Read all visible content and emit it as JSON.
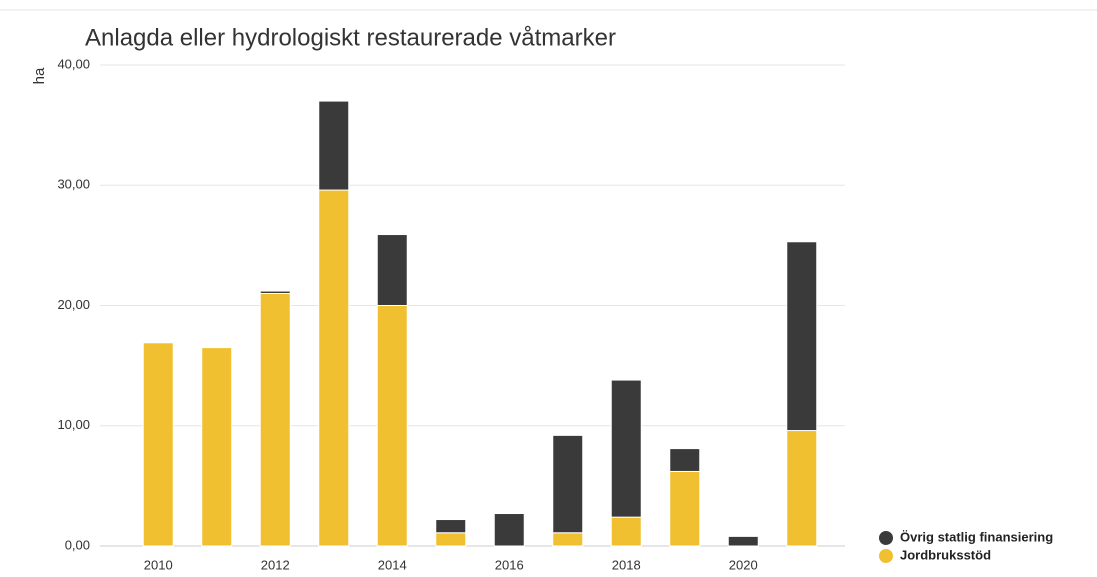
{
  "chart_data": {
    "type": "stacked_bar",
    "title": "Anlagda eller hydrologiskt restaurerade våtmarker",
    "ylabel": "ha",
    "categories": [
      "2010",
      null,
      "2012",
      null,
      "2014",
      null,
      "2016",
      null,
      "2018",
      null,
      "2020",
      null
    ],
    "series": [
      {
        "name": "Jordbruksstöd",
        "color": "#f0c030",
        "values": [
          16.9,
          16.5,
          21.0,
          29.6,
          20.0,
          1.1,
          0,
          1.1,
          2.4,
          6.2,
          0,
          9.6
        ]
      },
      {
        "name": "Övrig statlig finansiering",
        "color": "#3a3a3a",
        "values": [
          0,
          0,
          0.2,
          7.4,
          5.9,
          1.1,
          2.7,
          8.1,
          11.4,
          1.9,
          0.8,
          15.7
        ]
      }
    ],
    "ylim": [
      0,
      40
    ],
    "yticks": [
      {
        "value": 0,
        "label": "0,00"
      },
      {
        "value": 10,
        "label": "10,00"
      },
      {
        "value": 20,
        "label": "20,00"
      },
      {
        "value": 30,
        "label": "30,00"
      },
      {
        "value": 40,
        "label": "40,00"
      }
    ],
    "grid": true,
    "legend": "bottom-right"
  }
}
